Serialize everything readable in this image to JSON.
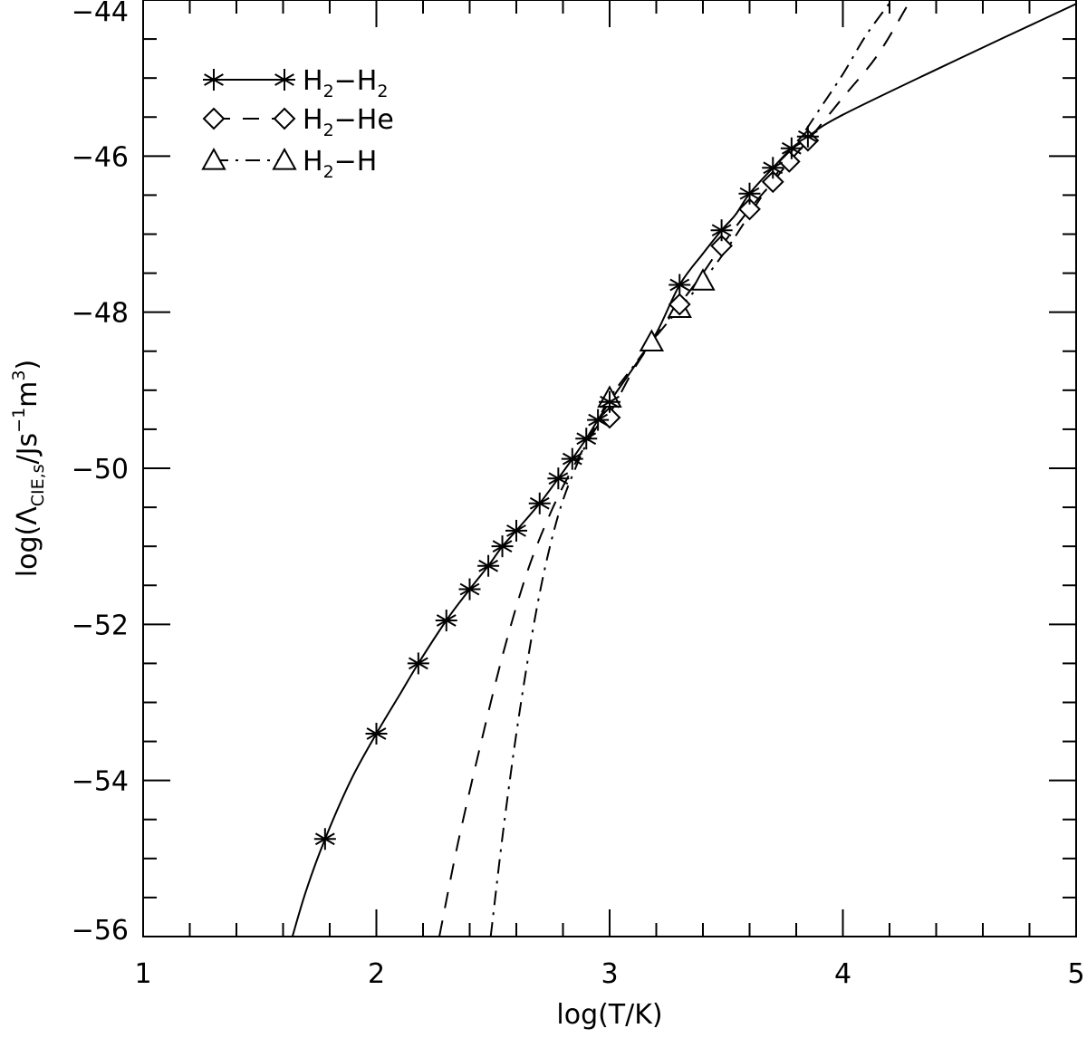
{
  "chart_data": {
    "type": "line",
    "xlabel": "log(T/K)",
    "ylabel": {
      "prefix": "log(",
      "symbol": "Λ",
      "subscript": "CIE,s",
      "middle": "/Js",
      "exp1": "−1",
      "unit2": "m",
      "exp2": "3",
      "suffix": ")"
    },
    "xlim": [
      1,
      5
    ],
    "ylim": [
      -56,
      -44
    ],
    "x_ticks": [
      1,
      2,
      3,
      4,
      5
    ],
    "x_tick_labels": [
      "1",
      "2",
      "3",
      "4",
      "5"
    ],
    "y_ticks": [
      -56,
      -54,
      -52,
      -50,
      -48,
      -46,
      -44
    ],
    "y_tick_labels": [
      "−56",
      "−54",
      "−52",
      "−50",
      "−48",
      "−46",
      "−44"
    ],
    "grid": false,
    "legend_position": "top-left",
    "series": [
      {
        "id": "h2h2",
        "name": {
          "a": "H",
          "s1": "2",
          "b": "−H",
          "s2": "2"
        },
        "line_style": "solid",
        "marker": "asterisk",
        "curve": [
          [
            1.64,
            -56.0
          ],
          [
            1.7,
            -55.4
          ],
          [
            1.78,
            -54.75
          ],
          [
            1.89,
            -54.0
          ],
          [
            2.0,
            -53.4
          ],
          [
            2.1,
            -52.9
          ],
          [
            2.18,
            -52.5
          ],
          [
            2.3,
            -51.95
          ],
          [
            2.4,
            -51.55
          ],
          [
            2.48,
            -51.25
          ],
          [
            2.54,
            -51.0
          ],
          [
            2.6,
            -50.8
          ],
          [
            2.7,
            -50.45
          ],
          [
            2.78,
            -50.13
          ],
          [
            2.84,
            -49.88
          ],
          [
            2.9,
            -49.62
          ],
          [
            2.95,
            -49.38
          ],
          [
            3.0,
            -49.15
          ],
          [
            3.1,
            -48.72
          ],
          [
            3.2,
            -48.27
          ],
          [
            3.3,
            -47.65
          ],
          [
            3.4,
            -47.25
          ],
          [
            3.48,
            -46.95
          ],
          [
            3.54,
            -46.75
          ],
          [
            3.6,
            -46.48
          ],
          [
            3.7,
            -46.15
          ],
          [
            3.78,
            -45.9
          ],
          [
            3.85,
            -45.75
          ],
          [
            4.0,
            -45.47
          ],
          [
            4.5,
            -44.75
          ],
          [
            5.0,
            -44.05
          ]
        ],
        "markers": [
          [
            1.78,
            -54.75
          ],
          [
            2.0,
            -53.4
          ],
          [
            2.18,
            -52.5
          ],
          [
            2.3,
            -51.95
          ],
          [
            2.4,
            -51.55
          ],
          [
            2.48,
            -51.25
          ],
          [
            2.54,
            -51.0
          ],
          [
            2.6,
            -50.8
          ],
          [
            2.7,
            -50.45
          ],
          [
            2.78,
            -50.13
          ],
          [
            2.84,
            -49.88
          ],
          [
            2.9,
            -49.62
          ],
          [
            2.95,
            -49.38
          ],
          [
            3.0,
            -49.15
          ],
          [
            3.3,
            -47.65
          ],
          [
            3.48,
            -46.95
          ],
          [
            3.6,
            -46.48
          ],
          [
            3.7,
            -46.15
          ],
          [
            3.78,
            -45.9
          ],
          [
            3.85,
            -45.75
          ]
        ]
      },
      {
        "id": "h2he",
        "name": {
          "a": "H",
          "s1": "2",
          "b": "−He"
        },
        "line_style": "dashed",
        "marker": "diamond",
        "curve": [
          [
            2.27,
            -56.0
          ],
          [
            2.35,
            -54.8
          ],
          [
            2.45,
            -53.5
          ],
          [
            2.55,
            -52.3
          ],
          [
            2.65,
            -51.3
          ],
          [
            2.75,
            -50.55
          ],
          [
            2.85,
            -49.95
          ],
          [
            2.95,
            -49.45
          ],
          [
            3.0,
            -49.3
          ],
          [
            3.1,
            -48.75
          ],
          [
            3.2,
            -48.3
          ],
          [
            3.3,
            -47.9
          ],
          [
            3.4,
            -47.5
          ],
          [
            3.48,
            -47.15
          ],
          [
            3.6,
            -46.68
          ],
          [
            3.7,
            -46.33
          ],
          [
            3.77,
            -46.07
          ],
          [
            3.85,
            -45.8
          ],
          [
            4.0,
            -45.25
          ],
          [
            4.15,
            -44.7
          ],
          [
            4.29,
            -44.0
          ]
        ],
        "markers": [
          [
            3.0,
            -49.35
          ],
          [
            3.3,
            -47.9
          ],
          [
            3.48,
            -47.15
          ],
          [
            3.6,
            -46.68
          ],
          [
            3.7,
            -46.33
          ],
          [
            3.77,
            -46.07
          ],
          [
            3.85,
            -45.8
          ]
        ]
      },
      {
        "id": "h2h",
        "name": {
          "a": "H",
          "s1": "2",
          "b": "−H"
        },
        "line_style": "dashdot",
        "marker": "triangle",
        "curve": [
          [
            2.49,
            -56.0
          ],
          [
            2.55,
            -54.5
          ],
          [
            2.62,
            -53.0
          ],
          [
            2.7,
            -51.6
          ],
          [
            2.78,
            -50.6
          ],
          [
            2.86,
            -49.95
          ],
          [
            2.94,
            -49.45
          ],
          [
            3.0,
            -49.1
          ],
          [
            3.1,
            -48.7
          ],
          [
            3.18,
            -48.38
          ],
          [
            3.3,
            -47.95
          ],
          [
            3.4,
            -47.6
          ],
          [
            3.5,
            -47.2
          ],
          [
            3.6,
            -46.75
          ],
          [
            3.7,
            -46.3
          ],
          [
            3.8,
            -45.85
          ],
          [
            3.9,
            -45.4
          ],
          [
            4.0,
            -44.95
          ],
          [
            4.1,
            -44.45
          ],
          [
            4.21,
            -44.0
          ]
        ],
        "markers": [
          [
            3.0,
            -49.1
          ],
          [
            3.18,
            -48.38
          ],
          [
            3.3,
            -47.95
          ],
          [
            3.4,
            -47.6
          ]
        ]
      }
    ]
  }
}
